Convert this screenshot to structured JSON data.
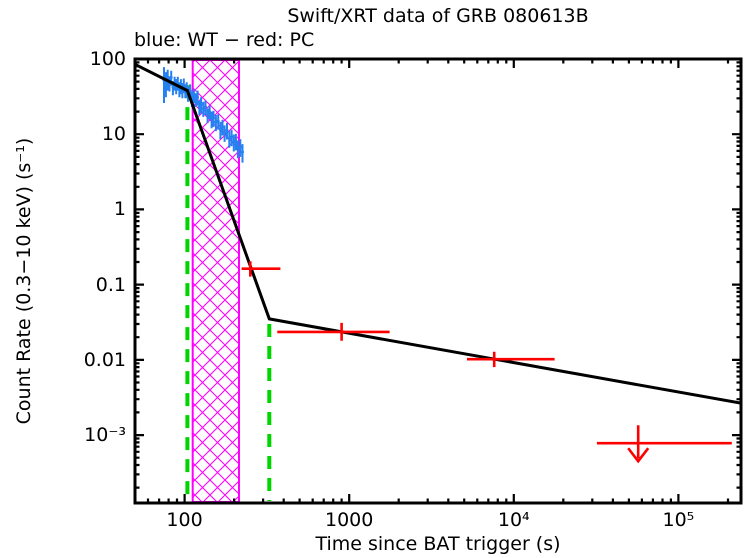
{
  "chart_data": {
    "type": "scatter",
    "title": "Swift/XRT data of GRB 080613B",
    "subtitle": "blue: WT − red: PC",
    "xlabel": "Time since BAT trigger (s)",
    "ylabel": "Count Rate (0.3−10 keV) (s⁻¹)",
    "xscale": "log",
    "yscale": "log",
    "grid": false,
    "xlim": [
      50,
      240000
    ],
    "ylim": [
      0.000125,
      100
    ],
    "x_ticks": [
      {
        "v": 100,
        "label": "100"
      },
      {
        "v": 1000,
        "label": "1000"
      },
      {
        "v": 10000,
        "label": "10⁴"
      },
      {
        "v": 100000,
        "label": "10⁵"
      }
    ],
    "y_ticks": [
      {
        "v": 100,
        "label": "100"
      },
      {
        "v": 10,
        "label": "10"
      },
      {
        "v": 1,
        "label": "1"
      },
      {
        "v": 0.1,
        "label": "0.1"
      },
      {
        "v": 0.01,
        "label": "0.01"
      },
      {
        "v": 0.001,
        "label": "10⁻³"
      }
    ],
    "colors": {
      "wt": "#2580f0",
      "pc": "#ff0000",
      "model": "#000000",
      "vline": "#00d500",
      "region": "#ff00ff"
    },
    "series": [
      {
        "name": "WT",
        "mode": "errorbars",
        "color_key": "wt",
        "points": [
          [
            75,
            52,
            26
          ],
          [
            77,
            49,
            18
          ],
          [
            79,
            55,
            17
          ],
          [
            81,
            48,
            11
          ],
          [
            83,
            57,
            13
          ],
          [
            85,
            42,
            9
          ],
          [
            87,
            48,
            10
          ],
          [
            89,
            44,
            10
          ],
          [
            91,
            48,
            10
          ],
          [
            93,
            40,
            9
          ],
          [
            95,
            44,
            10
          ],
          [
            97,
            39,
            9
          ],
          [
            99,
            45,
            10
          ],
          [
            101,
            38,
            8
          ],
          [
            103,
            40,
            9
          ],
          [
            105,
            35,
            8
          ],
          [
            108,
            38,
            8
          ],
          [
            111,
            30,
            7
          ],
          [
            114,
            33,
            7
          ],
          [
            117,
            29,
            6
          ],
          [
            120,
            31,
            7
          ],
          [
            123,
            23,
            5
          ],
          [
            126,
            25,
            6
          ],
          [
            130,
            22,
            5
          ],
          [
            134,
            23,
            5
          ],
          [
            138,
            18,
            4
          ],
          [
            142,
            20,
            4
          ],
          [
            146,
            16,
            4
          ],
          [
            150,
            16.5,
            4
          ],
          [
            155,
            14.5,
            3.5
          ],
          [
            160,
            15,
            3.5
          ],
          [
            165,
            11.6,
            3
          ],
          [
            170,
            12.6,
            3
          ],
          [
            175,
            10.5,
            2.6
          ],
          [
            181,
            11.3,
            2.8
          ],
          [
            187,
            8.8,
            2.2
          ],
          [
            193,
            9.2,
            2.3
          ],
          [
            199,
            7.9,
            2
          ],
          [
            205,
            8.1,
            2
          ],
          [
            211,
            6.5,
            1.7
          ],
          [
            218,
            6.8,
            1.8
          ],
          [
            225,
            5.8,
            1.6
          ]
        ]
      },
      {
        "name": "PC",
        "mode": "errorbars-xy",
        "color_key": "pc",
        "points": [
          {
            "t": 251,
            "t_lo": 222,
            "t_hi": 382,
            "rate": 0.163,
            "r_lo": 0.128,
            "r_hi": 0.205
          },
          {
            "t": 900,
            "t_lo": 366,
            "t_hi": 1760,
            "rate": 0.0235,
            "r_lo": 0.018,
            "r_hi": 0.031
          },
          {
            "t": 7600,
            "t_lo": 5200,
            "t_hi": 17700,
            "rate": 0.0102,
            "r_lo": 0.008,
            "r_hi": 0.0128
          }
        ],
        "upper_limits": [
          {
            "t": 57000,
            "t_lo": 32000,
            "t_hi": 211000,
            "rate": 0.00078
          }
        ]
      }
    ],
    "model": {
      "name": "broken power-law fit",
      "segments": [
        [
          50,
          85
        ],
        [
          104,
          38
        ],
        [
          327,
          0.035
        ],
        [
          240000,
          0.00265
        ]
      ]
    },
    "vlines": [
      {
        "t": 104,
        "r_top": 45
      },
      {
        "t": 327,
        "r_top": 0.03
      }
    ],
    "shaded_region": {
      "t_min": 112,
      "t_max": 214,
      "style": "crosshatch"
    }
  }
}
